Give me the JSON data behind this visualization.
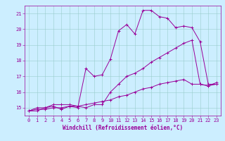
{
  "xlabel": "Windchill (Refroidissement éolien,°C)",
  "xlim": [
    -0.5,
    23.5
  ],
  "ylim": [
    14.5,
    21.5
  ],
  "yticks": [
    15,
    16,
    17,
    18,
    19,
    20,
    21
  ],
  "xticks": [
    0,
    1,
    2,
    3,
    4,
    5,
    6,
    7,
    8,
    9,
    10,
    11,
    12,
    13,
    14,
    15,
    16,
    17,
    18,
    19,
    20,
    21,
    22,
    23
  ],
  "bg_color": "#cceeff",
  "line_color": "#990099",
  "grid_color": "#99cccc",
  "line1": [
    14.8,
    14.8,
    15.0,
    15.1,
    14.9,
    15.1,
    15.0,
    17.5,
    17.0,
    17.1,
    18.1,
    19.9,
    20.3,
    19.7,
    21.2,
    21.2,
    20.8,
    20.7,
    20.1,
    20.2,
    20.1,
    19.2,
    16.5,
    16.5
  ],
  "line2": [
    14.8,
    15.0,
    15.0,
    15.2,
    15.2,
    15.2,
    15.1,
    15.0,
    15.2,
    15.2,
    16.0,
    16.5,
    17.0,
    17.2,
    17.5,
    17.9,
    18.2,
    18.5,
    18.8,
    19.1,
    19.3,
    16.5,
    16.4,
    16.6
  ],
  "line3": [
    14.8,
    14.9,
    14.9,
    15.0,
    15.0,
    15.1,
    15.1,
    15.2,
    15.3,
    15.4,
    15.5,
    15.7,
    15.8,
    16.0,
    16.2,
    16.3,
    16.5,
    16.6,
    16.7,
    16.8,
    16.5,
    16.5,
    16.4,
    16.5
  ],
  "label_fontsize": 5.5,
  "tick_fontsize": 5
}
